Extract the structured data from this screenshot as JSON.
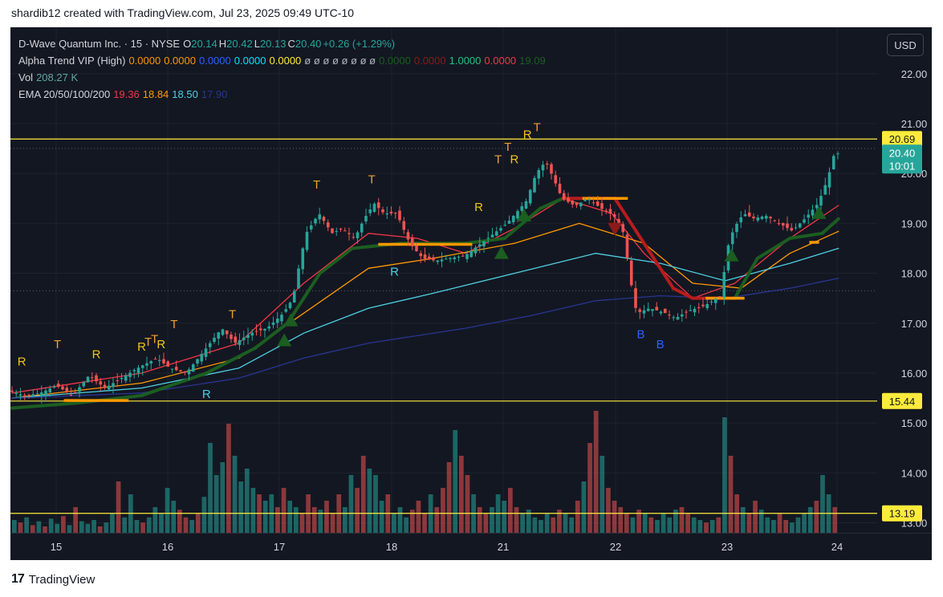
{
  "header": {
    "text": "shardib12 created with TradingView.com, Jul 23, 2025 09:49 UTC-10"
  },
  "footer": {
    "brand": "TradingView",
    "logo_mark": "17"
  },
  "usd_button": {
    "label": "USD"
  },
  "legend": {
    "symbol": {
      "name": "D-Wave Quantum Inc. · 15 · NYSE",
      "open_label": "O",
      "open": "20.14",
      "high_label": "H",
      "high": "20.42",
      "low_label": "L",
      "low": "20.13",
      "close_label": "C",
      "close": "20.40",
      "change": "+0.26 (+1.29%)"
    },
    "alpha_trend": {
      "label": "Alpha Trend VIP (High)",
      "values": [
        {
          "text": "0.0000",
          "color": "#ff9800"
        },
        {
          "text": "0.0000",
          "color": "#ff9800"
        },
        {
          "text": "0.0000",
          "color": "#2962ff"
        },
        {
          "text": "0.0000",
          "color": "#00e5ff"
        },
        {
          "text": "0.0000",
          "color": "#ffeb3b"
        },
        {
          "text": "ø ø ø ø ø ø ø ø",
          "color": "#b2b5be"
        },
        {
          "text": "0.0000",
          "color": "#1b5e20"
        },
        {
          "text": "0.0000",
          "color": "#8b1a1a"
        },
        {
          "text": "1.0000",
          "color": "#26c281"
        },
        {
          "text": "0.0000",
          "color": "#f23645"
        },
        {
          "text": "19.09",
          "color": "#1b5e20"
        }
      ]
    },
    "vol": {
      "label": "Vol",
      "value": "208.27 K",
      "value_color": "#5fa8a0"
    },
    "ema": {
      "label": "EMA 20/50/100/200",
      "values": [
        {
          "text": "19.36",
          "color": "#f23645"
        },
        {
          "text": "18.84",
          "color": "#ff9800"
        },
        {
          "text": "18.50",
          "color": "#4dd0e1"
        },
        {
          "text": "17.90",
          "color": "#283593"
        }
      ]
    }
  },
  "chart_data": {
    "type": "candlestick",
    "symbol": "D-Wave Quantum Inc.",
    "interval": "15",
    "exchange": "NYSE",
    "x_axis": {
      "tick_labels": [
        "15",
        "16",
        "17",
        "18",
        "21",
        "22",
        "23",
        "24"
      ]
    },
    "y_axis": {
      "range": [
        12.8,
        22.8
      ],
      "tick_labels": [
        "13.00",
        "14.00",
        "15.00",
        "16.00",
        "17.00",
        "18.00",
        "19.00",
        "20.00",
        "21.00",
        "22.00"
      ]
    },
    "horizontal_levels": [
      {
        "value": 20.69,
        "label": "20.69",
        "color": "#ffeb3b"
      },
      {
        "value": 15.44,
        "label": "15.44",
        "color": "#ffeb3b"
      },
      {
        "value": 13.19,
        "label": "13.19",
        "color": "#ffeb3b"
      }
    ],
    "last_price": {
      "value": 20.4,
      "label": "20.40",
      "countdown": "10:01",
      "color": "#26a69a"
    },
    "price_path": [
      [
        0,
        15.65
      ],
      [
        0.5,
        15.55
      ],
      [
        1,
        15.6
      ],
      [
        1.5,
        15.75
      ],
      [
        2,
        15.55
      ],
      [
        2.5,
        15.95
      ],
      [
        3,
        15.7
      ],
      [
        3.5,
        15.9
      ],
      [
        4,
        16.1
      ],
      [
        4.6,
        16.3
      ],
      [
        5,
        16.1
      ],
      [
        5.5,
        16.0
      ],
      [
        6,
        16.4
      ],
      [
        6.6,
        16.9
      ],
      [
        7,
        16.6
      ],
      [
        7.5,
        16.8
      ],
      [
        8,
        16.9
      ],
      [
        8.5,
        17.2
      ],
      [
        8.8,
        17.5
      ],
      [
        9,
        18.2
      ],
      [
        9.2,
        18.8
      ],
      [
        9.6,
        19.2
      ],
      [
        10,
        18.8
      ],
      [
        10.3,
        18.9
      ],
      [
        10.7,
        18.7
      ],
      [
        11,
        19.1
      ],
      [
        11.3,
        19.4
      ],
      [
        11.6,
        19.2
      ],
      [
        12,
        19.2
      ],
      [
        12.4,
        18.6
      ],
      [
        12.8,
        18.3
      ],
      [
        13.2,
        18.25
      ],
      [
        13.6,
        18.3
      ],
      [
        14.1,
        18.35
      ],
      [
        14.6,
        18.6
      ],
      [
        15,
        18.8
      ],
      [
        15.4,
        19.0
      ],
      [
        15.8,
        19.3
      ],
      [
        16,
        19.45
      ],
      [
        16.3,
        20.0
      ],
      [
        16.6,
        20.25
      ],
      [
        16.9,
        19.8
      ],
      [
        17.1,
        19.5
      ],
      [
        17.5,
        19.35
      ],
      [
        17.9,
        19.5
      ],
      [
        18.3,
        19.3
      ],
      [
        18.7,
        19.15
      ],
      [
        19,
        18.8
      ],
      [
        19.2,
        17.9
      ],
      [
        19.4,
        17.2
      ],
      [
        19.8,
        17.3
      ],
      [
        20.3,
        17.2
      ],
      [
        20.6,
        17.1
      ],
      [
        21,
        17.25
      ],
      [
        21.5,
        17.35
      ],
      [
        22,
        17.55
      ],
      [
        22.2,
        18.5
      ],
      [
        22.4,
        18.9
      ],
      [
        22.7,
        19.2
      ],
      [
        23,
        19.1
      ],
      [
        23.4,
        19.15
      ],
      [
        23.8,
        19.0
      ],
      [
        24.2,
        18.85
      ],
      [
        24.6,
        19.1
      ],
      [
        25,
        19.4
      ],
      [
        25.3,
        19.9
      ],
      [
        25.5,
        20.4
      ]
    ],
    "ema": [
      {
        "name": "EMA 20",
        "color": "#f23645",
        "points": [
          [
            0,
            15.6
          ],
          [
            4,
            16.0
          ],
          [
            7,
            16.6
          ],
          [
            9,
            17.8
          ],
          [
            11,
            18.8
          ],
          [
            12.5,
            18.7
          ],
          [
            14,
            18.4
          ],
          [
            15.5,
            18.9
          ],
          [
            17,
            19.5
          ],
          [
            18.5,
            19.2
          ],
          [
            19.5,
            18.4
          ],
          [
            21,
            17.5
          ],
          [
            22.3,
            17.8
          ],
          [
            24,
            18.7
          ],
          [
            25.5,
            19.36
          ]
        ]
      },
      {
        "name": "EMA 50",
        "color": "#ff9800",
        "points": [
          [
            0,
            15.5
          ],
          [
            4,
            15.8
          ],
          [
            7,
            16.3
          ],
          [
            9,
            17.2
          ],
          [
            11,
            18.1
          ],
          [
            13,
            18.3
          ],
          [
            15.5,
            18.6
          ],
          [
            17.5,
            19.0
          ],
          [
            19.5,
            18.6
          ],
          [
            21,
            17.8
          ],
          [
            22.5,
            17.7
          ],
          [
            24,
            18.4
          ],
          [
            25.5,
            18.84
          ]
        ]
      },
      {
        "name": "EMA 100",
        "color": "#4dd0e1",
        "points": [
          [
            0,
            15.5
          ],
          [
            4,
            15.7
          ],
          [
            7,
            16.1
          ],
          [
            9,
            16.8
          ],
          [
            11,
            17.3
          ],
          [
            13,
            17.6
          ],
          [
            15.5,
            18.0
          ],
          [
            18,
            18.4
          ],
          [
            20,
            18.2
          ],
          [
            22,
            17.85
          ],
          [
            24,
            18.2
          ],
          [
            25.5,
            18.5
          ]
        ]
      },
      {
        "name": "EMA 200",
        "color": "#283593",
        "points": [
          [
            0,
            15.5
          ],
          [
            4,
            15.6
          ],
          [
            7,
            15.9
          ],
          [
            9,
            16.3
          ],
          [
            11,
            16.6
          ],
          [
            14,
            16.9
          ],
          [
            16,
            17.15
          ],
          [
            18,
            17.45
          ],
          [
            20,
            17.55
          ],
          [
            22,
            17.5
          ],
          [
            24,
            17.7
          ],
          [
            25.5,
            17.9
          ]
        ]
      }
    ],
    "alpha_trend": {
      "name": "Alpha Trend",
      "color_up": "#1b5e20",
      "color_down": "#b71c1c",
      "points": [
        [
          0,
          15.3
        ],
        [
          2,
          15.4
        ],
        [
          4,
          15.55
        ],
        [
          6,
          16.0
        ],
        [
          7.5,
          16.5
        ],
        [
          8.5,
          17.0
        ],
        [
          9.5,
          18.0
        ],
        [
          10.5,
          18.5
        ],
        [
          12,
          18.6
        ],
        [
          14,
          18.6
        ],
        [
          15.2,
          18.7
        ],
        [
          16.3,
          19.3
        ],
        [
          17,
          19.5
        ],
        [
          18.6,
          19.5
        ],
        [
          19.5,
          18.6
        ],
        [
          20.4,
          17.7
        ],
        [
          21,
          17.5
        ],
        [
          22.3,
          17.5
        ],
        [
          23,
          18.3
        ],
        [
          24,
          18.7
        ],
        [
          25,
          18.8
        ],
        [
          25.5,
          19.09
        ]
      ]
    },
    "support_segments": [
      {
        "from_x": 1.6,
        "to_x": 3.6,
        "value": 15.45,
        "color": "#ff9800"
      },
      {
        "from_x": 11.3,
        "to_x": 14.2,
        "value": 18.58,
        "color": "#ff9800"
      },
      {
        "from_x": 17.6,
        "to_x": 19.0,
        "value": 19.5,
        "color": "#ff9800"
      },
      {
        "from_x": 21.4,
        "to_x": 22.6,
        "value": 17.5,
        "color": "#ff9800"
      },
      {
        "from_x": 24.6,
        "to_x": 24.9,
        "value": 18.62,
        "color": "#ff9800"
      }
    ],
    "signals": [
      {
        "text": "R",
        "x": 0.3,
        "price": 16.15,
        "color": "#f0c419"
      },
      {
        "text": "T",
        "x": 1.4,
        "price": 16.5,
        "color": "#f0a030"
      },
      {
        "text": "R",
        "x": 2.6,
        "price": 16.3,
        "color": "#f0c419"
      },
      {
        "text": "R",
        "x": 4.0,
        "price": 16.45,
        "color": "#f0c419"
      },
      {
        "text": "T",
        "x": 4.2,
        "price": 16.55,
        "color": "#f0a030"
      },
      {
        "text": "T",
        "x": 4.4,
        "price": 16.6,
        "color": "#f0a030"
      },
      {
        "text": "R",
        "x": 4.6,
        "price": 16.5,
        "color": "#f0c419"
      },
      {
        "text": "T",
        "x": 5.0,
        "price": 16.9,
        "color": "#f0a030"
      },
      {
        "text": "R",
        "x": 6.0,
        "price": 15.5,
        "color": "#4dd0e1"
      },
      {
        "text": "T",
        "x": 6.8,
        "price": 17.1,
        "color": "#f0a030"
      },
      {
        "text": "T",
        "x": 9.4,
        "price": 19.7,
        "color": "#f0a030"
      },
      {
        "text": "T",
        "x": 11.1,
        "price": 19.8,
        "color": "#f0a030"
      },
      {
        "text": "R",
        "x": 11.8,
        "price": 17.95,
        "color": "#4dd0e1"
      },
      {
        "text": "R",
        "x": 14.4,
        "price": 19.25,
        "color": "#f0c419"
      },
      {
        "text": "T",
        "x": 15.0,
        "price": 20.2,
        "color": "#f0a030"
      },
      {
        "text": "T",
        "x": 15.3,
        "price": 20.45,
        "color": "#f0a030"
      },
      {
        "text": "R",
        "x": 15.5,
        "price": 20.2,
        "color": "#f0c419"
      },
      {
        "text": "R",
        "x": 15.9,
        "price": 20.7,
        "color": "#f0c419"
      },
      {
        "text": "T",
        "x": 16.2,
        "price": 20.85,
        "color": "#f0a030"
      },
      {
        "text": "B",
        "x": 19.4,
        "price": 16.7,
        "color": "#2962ff"
      },
      {
        "text": "B",
        "x": 20.0,
        "price": 16.5,
        "color": "#2962ff"
      }
    ],
    "trend_markers": [
      {
        "dir": "up",
        "x": 8.6,
        "price": 17.05,
        "color": "#1b5e20"
      },
      {
        "dir": "up",
        "x": 8.4,
        "price": 16.65,
        "color": "#1b5e20"
      },
      {
        "dir": "up",
        "x": 15.1,
        "price": 18.4,
        "color": "#1b5e20"
      },
      {
        "dir": "up",
        "x": 15.8,
        "price": 19.15,
        "color": "#1b5e20"
      },
      {
        "dir": "down",
        "x": 18.6,
        "price": 18.9,
        "color": "#8b1a1a"
      },
      {
        "dir": "up",
        "x": 22.2,
        "price": 18.35,
        "color": "#1b5e20"
      },
      {
        "dir": "up",
        "x": 24.9,
        "price": 19.2,
        "color": "#1b5e20"
      }
    ],
    "volume": {
      "up_color": "#26a69a",
      "down_color": "#ef5350",
      "relative_heights": [
        0.1,
        0.08,
        0.12,
        0.06,
        0.09,
        0.05,
        0.11,
        0.07,
        0.13,
        0.06,
        0.2,
        0.09,
        0.07,
        0.1,
        0.05,
        0.08,
        0.15,
        0.4,
        0.12,
        0.3,
        0.1,
        0.08,
        0.12,
        0.2,
        0.15,
        0.35,
        0.25,
        0.18,
        0.12,
        0.1,
        0.15,
        0.28,
        0.7,
        0.45,
        0.55,
        0.85,
        0.6,
        0.4,
        0.5,
        0.35,
        0.3,
        0.25,
        0.3,
        0.2,
        0.35,
        0.25,
        0.2,
        0.15,
        0.3,
        0.2,
        0.18,
        0.25,
        0.15,
        0.3,
        0.2,
        0.45,
        0.35,
        0.6,
        0.5,
        0.45,
        0.25,
        0.3,
        0.15,
        0.2,
        0.12,
        0.18,
        0.25,
        0.15,
        0.3,
        0.2,
        0.35,
        0.55,
        0.8,
        0.6,
        0.45,
        0.3,
        0.2,
        0.15,
        0.2,
        0.3,
        0.25,
        0.35,
        0.2,
        0.15,
        0.18,
        0.12,
        0.1,
        0.15,
        0.12,
        0.18,
        0.15,
        0.12,
        0.25,
        0.4,
        0.7,
        0.95,
        0.6,
        0.35,
        0.25,
        0.2,
        0.15,
        0.12,
        0.18,
        0.15,
        0.12,
        0.1,
        0.15,
        0.12,
        0.18,
        0.2,
        0.15,
        0.12,
        0.1,
        0.08,
        0.1,
        0.12,
        0.9,
        0.6,
        0.3,
        0.2,
        0.15,
        0.25,
        0.18,
        0.12,
        0.1,
        0.15,
        0.1,
        0.08,
        0.12,
        0.15,
        0.2,
        0.25,
        0.45,
        0.3,
        0.2
      ],
      "up_flags": "10101011010111011011101111100101111011110110011000100011001110111000100010010011100111110011010010000101011110011010100100111001111011011001"
    }
  }
}
